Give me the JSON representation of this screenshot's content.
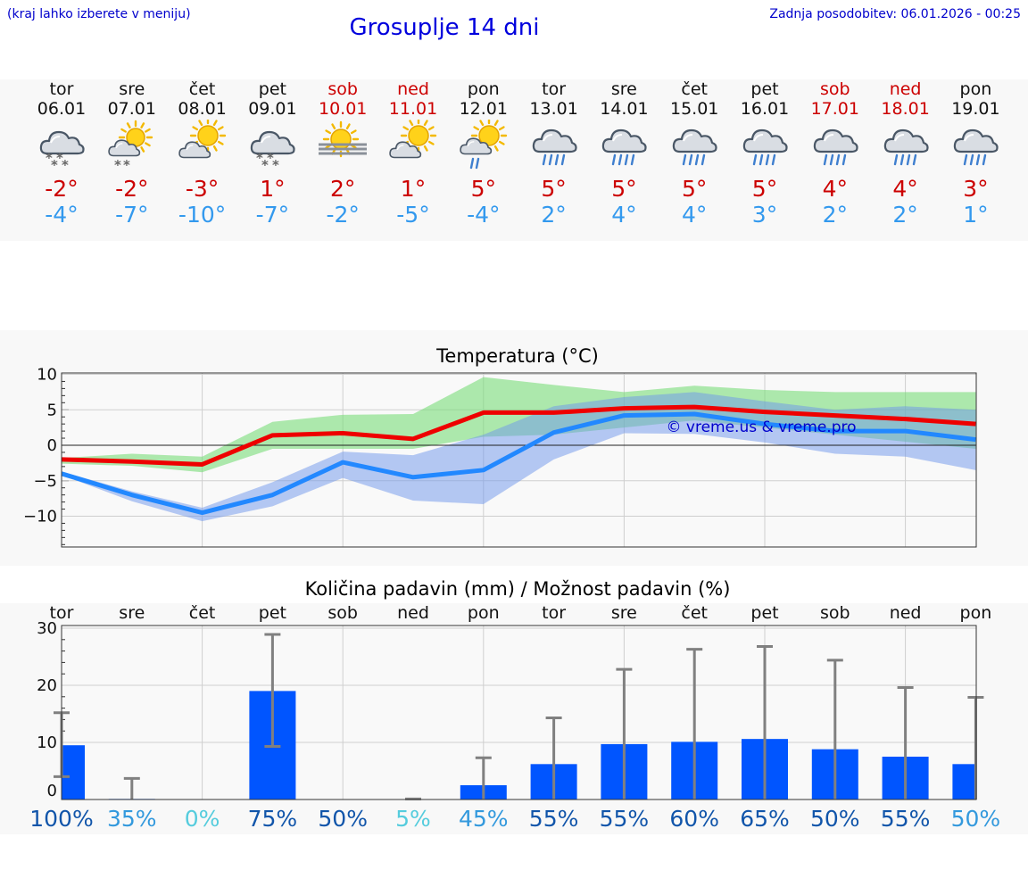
{
  "header": {
    "hint": "(kraj lahko izberete v meniju)",
    "title": "Grosuplje 14 dni",
    "updated": "Zadnja posodobitev: 06.01.2026 - 00:25"
  },
  "colors": {
    "max": "#ee0000",
    "min": "#2288ff",
    "precip": "#0055ff",
    "maxText": "#cc0000",
    "minText": "#3399ee",
    "weekend": "#cc0000"
  },
  "days": [
    {
      "name": "tor",
      "date": "06.01",
      "max": "-2°",
      "min": "-4°",
      "icon": "cloud-snow",
      "weekend": false
    },
    {
      "name": "sre",
      "date": "07.01",
      "max": "-2°",
      "min": "-7°",
      "icon": "sun-cloud-snow",
      "weekend": false
    },
    {
      "name": "čet",
      "date": "08.01",
      "max": "-3°",
      "min": "-10°",
      "icon": "sun-cloud",
      "weekend": false
    },
    {
      "name": "pet",
      "date": "09.01",
      "max": "1°",
      "min": "-7°",
      "icon": "cloud-snow",
      "weekend": false
    },
    {
      "name": "sob",
      "date": "10.01",
      "max": "2°",
      "min": "-2°",
      "icon": "sun-fog",
      "weekend": true
    },
    {
      "name": "ned",
      "date": "11.01",
      "max": "1°",
      "min": "-5°",
      "icon": "sun-cloud",
      "weekend": true
    },
    {
      "name": "pon",
      "date": "12.01",
      "max": "5°",
      "min": "-4°",
      "icon": "sun-cloud-rain",
      "weekend": false
    },
    {
      "name": "tor",
      "date": "13.01",
      "max": "5°",
      "min": "2°",
      "icon": "cloud-rain",
      "weekend": false
    },
    {
      "name": "sre",
      "date": "14.01",
      "max": "5°",
      "min": "4°",
      "icon": "cloud-rain",
      "weekend": false
    },
    {
      "name": "čet",
      "date": "15.01",
      "max": "5°",
      "min": "4°",
      "icon": "cloud-rain",
      "weekend": false
    },
    {
      "name": "pet",
      "date": "16.01",
      "max": "5°",
      "min": "3°",
      "icon": "cloud-rain",
      "weekend": false
    },
    {
      "name": "sob",
      "date": "17.01",
      "max": "4°",
      "min": "2°",
      "icon": "cloud-rain",
      "weekend": true
    },
    {
      "name": "ned",
      "date": "18.01",
      "max": "4°",
      "min": "2°",
      "icon": "cloud-rain",
      "weekend": true
    },
    {
      "name": "pon",
      "date": "19.01",
      "max": "3°",
      "min": "1°",
      "icon": "cloud-rain",
      "weekend": false
    }
  ],
  "chart_data": [
    {
      "type": "line",
      "title": "Temperatura (°C)",
      "ylim": [
        -14,
        10
      ],
      "yticks": [
        10,
        5,
        0,
        -5,
        -10
      ],
      "ytick_labels": [
        "10",
        "5",
        "0",
        "−5",
        "−10"
      ],
      "watermark": "© vreme.us & vreme.pro",
      "x": [
        0,
        1,
        2,
        3,
        4,
        5,
        6,
        7,
        8,
        9,
        10,
        11,
        12,
        13
      ],
      "series": [
        {
          "name": "max",
          "values": [
            -2,
            -2.3,
            -2.7,
            1.4,
            1.7,
            0.9,
            4.6,
            4.6,
            5.2,
            5.4,
            4.7,
            4.2,
            3.7,
            3.0
          ]
        },
        {
          "name": "min",
          "values": [
            -4,
            -7,
            -9.5,
            -7,
            -2.4,
            -4.5,
            -3.5,
            1.8,
            4.2,
            4.4,
            3,
            2,
            2,
            0.8
          ]
        }
      ],
      "bands": [
        {
          "name": "max-range",
          "low": [
            -2.6,
            -2.9,
            -3.8,
            -0.5,
            -0.5,
            -0.5,
            1.2,
            1.5,
            2.5,
            3.5,
            2.5,
            1.5,
            0.5,
            -0.5
          ],
          "high": [
            -1.8,
            -1.2,
            -1.6,
            3.3,
            4.3,
            4.4,
            9.6,
            8.5,
            7.5,
            8.4,
            7.8,
            7.5,
            7.5,
            7.5
          ]
        },
        {
          "name": "min-range",
          "low": [
            -4.2,
            -7.9,
            -10.7,
            -8.6,
            -4.6,
            -7.8,
            -8.3,
            -2,
            1.7,
            1.6,
            0.4,
            -1.2,
            -1.6,
            -3.5
          ],
          "high": [
            -3.7,
            -6.5,
            -8.8,
            -5.2,
            -0.9,
            -1.4,
            1.5,
            5.5,
            6.8,
            7.5,
            6.2,
            5,
            5.5,
            5
          ]
        }
      ]
    },
    {
      "type": "bar",
      "title": "Količina padavin (mm) / Možnost padavin (%)",
      "ylim": [
        0,
        30
      ],
      "yticks": [
        30,
        20,
        10,
        0
      ],
      "categories": [
        "tor",
        "sre",
        "čet",
        "pet",
        "sob",
        "ned",
        "pon",
        "tor",
        "sre",
        "čet",
        "pet",
        "sob",
        "ned",
        "pon"
      ],
      "values": [
        9.5,
        0.1,
        0,
        19,
        0,
        0,
        2.5,
        6.2,
        9.7,
        10.1,
        10.6,
        8.8,
        7.5,
        6.2
      ],
      "err_low": [
        4,
        0,
        0,
        9.3,
        0,
        0,
        0,
        0,
        0,
        0,
        0,
        0,
        0,
        0
      ],
      "err_high": [
        15.2,
        3.7,
        0,
        28.9,
        0,
        0.1,
        7.3,
        14.3,
        22.8,
        26.3,
        26.8,
        24.4,
        19.6,
        17.9
      ],
      "probability": [
        "100%",
        "35%",
        "0%",
        "75%",
        "50%",
        "5%",
        "45%",
        "55%",
        "55%",
        "60%",
        "65%",
        "50%",
        "55%",
        "50%"
      ],
      "probability_colors": [
        "#1155aa",
        "#3399dd",
        "#55ccdd",
        "#1155aa",
        "#1155aa",
        "#55ccdd",
        "#3399dd",
        "#1155aa",
        "#1155aa",
        "#1155aa",
        "#1155aa",
        "#1155aa",
        "#1155aa",
        "#3399dd"
      ]
    }
  ]
}
